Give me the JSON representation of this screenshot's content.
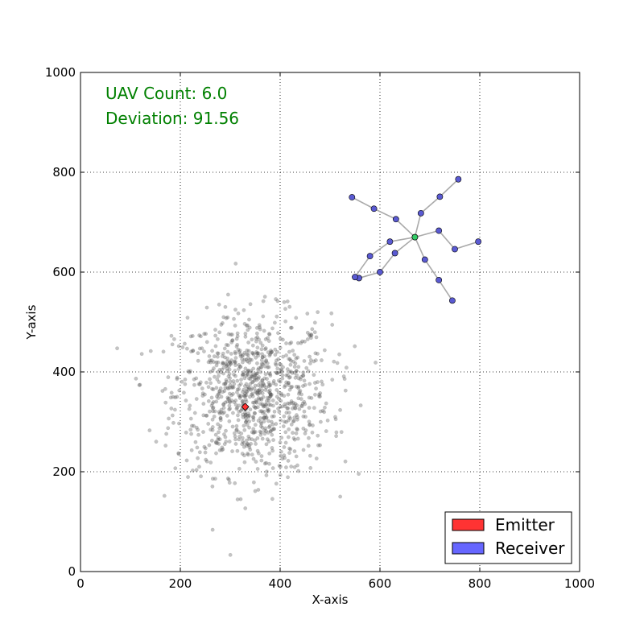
{
  "chart_data": {
    "type": "scatter",
    "title": "",
    "xlabel": "X-axis",
    "ylabel": "Y-axis",
    "xlim": [
      0,
      1000
    ],
    "ylim": [
      0,
      1000
    ],
    "xticks": [
      "0",
      "200",
      "400",
      "600",
      "800",
      "1000"
    ],
    "yticks": [
      "0",
      "200",
      "400",
      "600",
      "800",
      "1000"
    ],
    "grid": true,
    "grid_style": "dotted",
    "legend_position": "lower-right",
    "annotations": [
      {
        "id": "uav-count",
        "text": "UAV Count: 6.0",
        "color": "#008000"
      },
      {
        "id": "deviation",
        "text": "Deviation: 91.56",
        "color": "#008000"
      }
    ],
    "legend": [
      {
        "label": "Emitter",
        "color": "#ff3333"
      },
      {
        "label": "Receiver",
        "color": "#6666ff"
      }
    ],
    "emitter": {
      "x": 330,
      "y": 330,
      "color": "#ff3333"
    },
    "hub": {
      "x": 670,
      "y": 670,
      "color": "#33cc66"
    },
    "receiver_color": "#5a5ad2",
    "branches": [
      [
        [
          670,
          670
        ],
        [
          632,
          706
        ],
        [
          588,
          727
        ],
        [
          544,
          750
        ]
      ],
      [
        [
          670,
          670
        ],
        [
          682,
          718
        ],
        [
          720,
          751
        ],
        [
          757,
          786
        ]
      ],
      [
        [
          670,
          670
        ],
        [
          718,
          683
        ],
        [
          750,
          646
        ],
        [
          797,
          661
        ]
      ],
      [
        [
          670,
          670
        ],
        [
          690,
          625
        ],
        [
          718,
          584
        ],
        [
          745,
          543
        ]
      ],
      [
        [
          670,
          670
        ],
        [
          630,
          638
        ],
        [
          600,
          600
        ],
        [
          558,
          588
        ]
      ],
      [
        [
          670,
          670
        ],
        [
          620,
          661
        ],
        [
          580,
          632
        ],
        [
          550,
          590
        ]
      ]
    ],
    "cloud": {
      "description_only": false,
      "center_x": 345,
      "center_y": 355,
      "std_x": 78,
      "std_y": 80,
      "count": 1000,
      "color": "#555555",
      "opacity": 0.35
    }
  }
}
